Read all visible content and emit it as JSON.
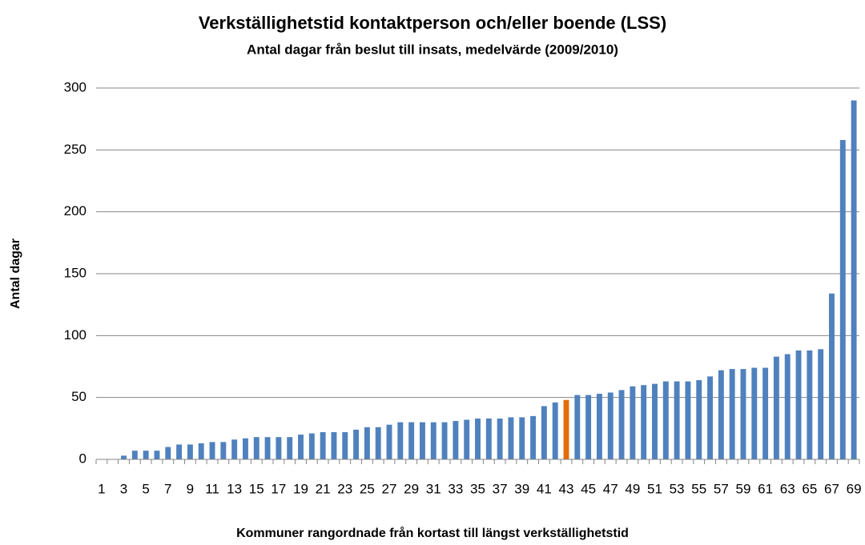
{
  "chart_data": {
    "type": "bar",
    "title": "Verkställighetstid kontaktperson och/eller boende (LSS)",
    "subtitle": "Antal dagar från beslut till insats, medelvärde (2009/2010)",
    "x_label": "Kommuner rangordnade från kortast till längst verkställighetstid",
    "y_label": "Antal dagar",
    "categories": [
      "1",
      null,
      "3",
      null,
      "5",
      null,
      "7",
      null,
      "9",
      null,
      "11",
      null,
      "13",
      null,
      "15",
      null,
      "17",
      null,
      "19",
      null,
      "21",
      null,
      "23",
      null,
      "25",
      null,
      "27",
      null,
      "29",
      null,
      "31",
      null,
      "33",
      null,
      "35",
      null,
      "37",
      null,
      "39",
      null,
      "41",
      null,
      "43",
      null,
      "45",
      null,
      "47",
      null,
      "49",
      null,
      "51",
      null,
      "53",
      null,
      "55",
      null,
      "57",
      null,
      "59",
      null,
      "61",
      null,
      "63",
      null,
      "65",
      null,
      "67",
      null,
      "69"
    ],
    "values": [
      0,
      0,
      3,
      7,
      7,
      7,
      10,
      12,
      12,
      13,
      14,
      14,
      16,
      17,
      18,
      18,
      18,
      18,
      20,
      21,
      22,
      22,
      22,
      24,
      26,
      26,
      28,
      30,
      30,
      30,
      30,
      30,
      31,
      32,
      33,
      33,
      33,
      34,
      34,
      35,
      43,
      46,
      48,
      52,
      52,
      53,
      54,
      56,
      59,
      60,
      61,
      63,
      63,
      63,
      64,
      67,
      72,
      73,
      73,
      74,
      74,
      83,
      85,
      88,
      88,
      89,
      134,
      258,
      290
    ],
    "colors": [
      "#4f81bd",
      "#4f81bd",
      "#4f81bd",
      "#4f81bd",
      "#4f81bd",
      "#4f81bd",
      "#4f81bd",
      "#4f81bd",
      "#4f81bd",
      "#4f81bd",
      "#4f81bd",
      "#4f81bd",
      "#4f81bd",
      "#4f81bd",
      "#4f81bd",
      "#4f81bd",
      "#4f81bd",
      "#4f81bd",
      "#4f81bd",
      "#4f81bd",
      "#4f81bd",
      "#4f81bd",
      "#4f81bd",
      "#4f81bd",
      "#4f81bd",
      "#4f81bd",
      "#4f81bd",
      "#4f81bd",
      "#4f81bd",
      "#4f81bd",
      "#4f81bd",
      "#4f81bd",
      "#4f81bd",
      "#4f81bd",
      "#4f81bd",
      "#4f81bd",
      "#4f81bd",
      "#4f81bd",
      "#4f81bd",
      "#4f81bd",
      "#4f81bd",
      "#4f81bd",
      "#e46c0a",
      "#4f81bd",
      "#4f81bd",
      "#4f81bd",
      "#4f81bd",
      "#4f81bd",
      "#4f81bd",
      "#4f81bd",
      "#4f81bd",
      "#4f81bd",
      "#4f81bd",
      "#4f81bd",
      "#4f81bd",
      "#4f81bd",
      "#4f81bd",
      "#4f81bd",
      "#4f81bd",
      "#4f81bd",
      "#4f81bd",
      "#4f81bd",
      "#4f81bd",
      "#4f81bd",
      "#4f81bd",
      "#4f81bd",
      "#4f81bd",
      "#4f81bd",
      "#4f81bd"
    ],
    "ylim": [
      0,
      300
    ],
    "yticks": [
      0,
      50,
      100,
      150,
      200,
      250,
      300
    ],
    "grid": true
  }
}
